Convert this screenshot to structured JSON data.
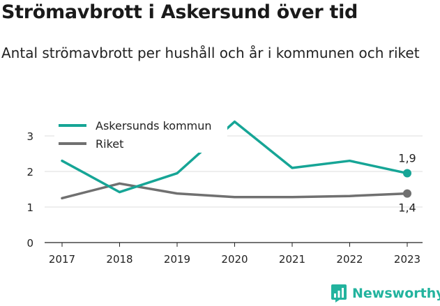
{
  "header": {
    "title": "Strömavbrott i Askersund över tid",
    "subtitle": "Antal strömavbrott per hushåll och år i kommunen och riket"
  },
  "chart_data": {
    "type": "line",
    "title": "Strömavbrott i Askersund över tid",
    "subtitle": "Antal strömavbrott per hushåll och år i kommunen och riket",
    "xlabel": "",
    "ylabel": "",
    "x": [
      "2017",
      "2018",
      "2019",
      "2020",
      "2021",
      "2022",
      "2023"
    ],
    "ylim": [
      0,
      3.4
    ],
    "yticks": [
      0,
      1,
      2,
      3
    ],
    "grid": "horizontal",
    "legend_position": "top-left",
    "series": [
      {
        "name": "Askersunds kommun",
        "color": "#16a596",
        "values": [
          2.3,
          1.42,
          1.95,
          3.4,
          2.1,
          2.3,
          1.95
        ],
        "end_label": "1,9"
      },
      {
        "name": "Riket",
        "color": "#707070",
        "values": [
          1.25,
          1.66,
          1.38,
          1.28,
          1.28,
          1.31,
          1.38
        ],
        "end_label": "1,4"
      }
    ]
  },
  "brand": {
    "name": "Newsworthy",
    "color": "#22b39e"
  }
}
